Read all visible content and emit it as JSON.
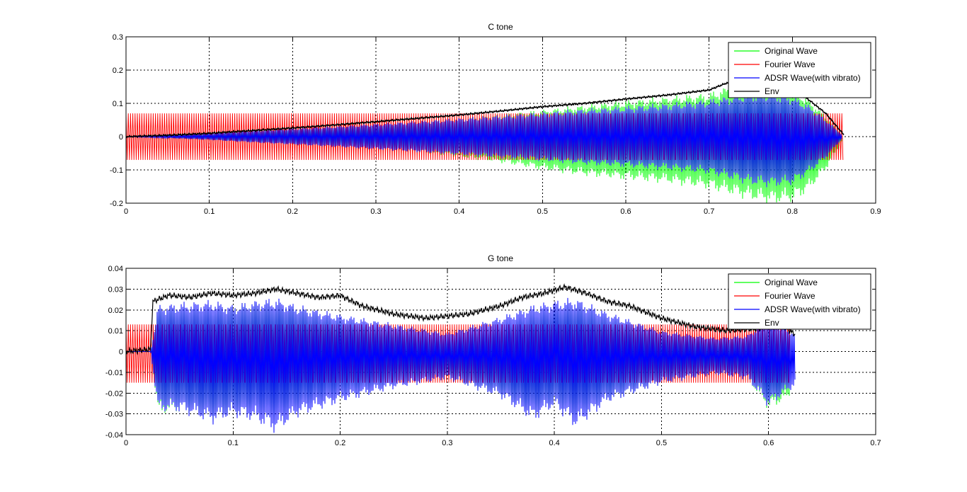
{
  "figure": {
    "background": "#ffffff"
  },
  "chart_data": [
    {
      "type": "line",
      "title": "C tone",
      "xlabel": "",
      "ylabel": "",
      "xlim": [
        0,
        0.9
      ],
      "ylim": [
        -0.2,
        0.3
      ],
      "xticks": [
        0,
        0.1,
        0.2,
        0.3,
        0.4,
        0.5,
        0.6,
        0.7,
        0.8,
        0.9
      ],
      "yticks": [
        -0.2,
        -0.1,
        0,
        0.1,
        0.2,
        0.3
      ],
      "xtick_labels": [
        "0",
        "0.1",
        "0.2",
        "0.3",
        "0.4",
        "0.5",
        "0.6",
        "0.7",
        "0.8",
        "0.9"
      ],
      "ytick_labels": [
        "-0.2",
        "-0.1",
        "0",
        "0.1",
        "0.2",
        "0.3"
      ],
      "grid": true,
      "legend_position": "top-right",
      "series": [
        {
          "name": "Original Wave",
          "color": "#00ff00",
          "style": "oscillation-band",
          "x": [
            0,
            0.05,
            0.1,
            0.15,
            0.2,
            0.25,
            0.3,
            0.35,
            0.4,
            0.45,
            0.5,
            0.55,
            0.6,
            0.65,
            0.7,
            0.725,
            0.75,
            0.775,
            0.8,
            0.82,
            0.84,
            0.86
          ],
          "upper": [
            0.0,
            0.004,
            0.009,
            0.016,
            0.022,
            0.028,
            0.035,
            0.042,
            0.05,
            0.06,
            0.072,
            0.085,
            0.097,
            0.108,
            0.117,
            0.138,
            0.15,
            0.15,
            0.135,
            0.1,
            0.055,
            0.005
          ],
          "lower": [
            0.0,
            -0.004,
            -0.009,
            -0.016,
            -0.022,
            -0.028,
            -0.035,
            -0.042,
            -0.055,
            -0.07,
            -0.09,
            -0.105,
            -0.115,
            -0.125,
            -0.14,
            -0.155,
            -0.17,
            -0.18,
            -0.175,
            -0.145,
            -0.09,
            -0.01
          ]
        },
        {
          "name": "Fourier Wave",
          "color": "#ff0000",
          "style": "oscillation-band",
          "x": [
            0,
            0.862
          ],
          "upper": [
            0.07,
            0.07
          ],
          "lower": [
            -0.07,
            -0.07
          ]
        },
        {
          "name": "ADSR Wave(with vibrato)",
          "color": "#0000ff",
          "style": "oscillation-band",
          "x": [
            0,
            0.05,
            0.1,
            0.15,
            0.2,
            0.25,
            0.3,
            0.35,
            0.4,
            0.45,
            0.5,
            0.55,
            0.6,
            0.65,
            0.7,
            0.725,
            0.75,
            0.775,
            0.8,
            0.82,
            0.84,
            0.86
          ],
          "upper": [
            0.0,
            0.004,
            0.009,
            0.016,
            0.022,
            0.028,
            0.035,
            0.042,
            0.05,
            0.058,
            0.066,
            0.075,
            0.082,
            0.09,
            0.1,
            0.11,
            0.12,
            0.12,
            0.11,
            0.085,
            0.048,
            0.005
          ],
          "lower": [
            0.0,
            -0.004,
            -0.009,
            -0.016,
            -0.022,
            -0.028,
            -0.035,
            -0.042,
            -0.05,
            -0.058,
            -0.066,
            -0.075,
            -0.082,
            -0.09,
            -0.1,
            -0.115,
            -0.13,
            -0.135,
            -0.13,
            -0.1,
            -0.06,
            -0.005
          ]
        },
        {
          "name": "Env",
          "color": "#000000",
          "style": "line",
          "x": [
            0,
            0.05,
            0.1,
            0.15,
            0.2,
            0.25,
            0.3,
            0.35,
            0.4,
            0.45,
            0.5,
            0.55,
            0.6,
            0.65,
            0.7,
            0.72,
            0.75,
            0.78,
            0.8,
            0.82,
            0.84,
            0.862
          ],
          "y": [
            0.0,
            0.004,
            0.01,
            0.018,
            0.026,
            0.035,
            0.045,
            0.055,
            0.065,
            0.077,
            0.09,
            0.1,
            0.113,
            0.125,
            0.14,
            0.16,
            0.17,
            0.165,
            0.145,
            0.11,
            0.07,
            0.005
          ]
        }
      ]
    },
    {
      "type": "line",
      "title": "G tone",
      "xlabel": "",
      "ylabel": "",
      "xlim": [
        0,
        0.7
      ],
      "ylim": [
        -0.04,
        0.04
      ],
      "xticks": [
        0,
        0.1,
        0.2,
        0.3,
        0.4,
        0.5,
        0.6,
        0.7
      ],
      "yticks": [
        -0.04,
        -0.03,
        -0.02,
        -0.01,
        0,
        0.01,
        0.02,
        0.03,
        0.04
      ],
      "xtick_labels": [
        "0",
        "0.1",
        "0.2",
        "0.3",
        "0.4",
        "0.5",
        "0.6",
        "0.7"
      ],
      "ytick_labels": [
        "-0.04",
        "-0.03",
        "-0.02",
        "-0.01",
        "0",
        "0.01",
        "0.02",
        "0.03",
        "0.04"
      ],
      "grid": true,
      "legend_position": "top-right",
      "series": [
        {
          "name": "Original Wave",
          "color": "#00ff00",
          "style": "oscillation-band",
          "x": [
            0,
            0.023,
            0.03,
            0.05,
            0.08,
            0.1,
            0.12,
            0.14,
            0.16,
            0.2,
            0.25,
            0.3,
            0.35,
            0.38,
            0.4,
            0.42,
            0.45,
            0.5,
            0.55,
            0.58,
            0.6,
            0.62
          ],
          "upper": [
            0.0,
            0.0,
            0.02,
            0.02,
            0.02,
            0.02,
            0.022,
            0.022,
            0.02,
            0.015,
            0.01,
            0.006,
            0.012,
            0.018,
            0.02,
            0.022,
            0.016,
            0.008,
            0.005,
            0.006,
            0.012,
            0.008
          ],
          "lower": [
            0.0,
            0.0,
            -0.027,
            -0.026,
            -0.03,
            -0.028,
            -0.027,
            -0.03,
            -0.026,
            -0.02,
            -0.015,
            -0.012,
            -0.02,
            -0.028,
            -0.024,
            -0.03,
            -0.022,
            -0.014,
            -0.01,
            -0.012,
            -0.025,
            -0.02
          ]
        },
        {
          "name": "Fourier Wave",
          "color": "#ff0000",
          "style": "oscillation-band",
          "x": [
            0,
            0.62
          ],
          "upper": [
            0.013,
            0.013
          ],
          "lower": [
            -0.015,
            -0.015
          ]
        },
        {
          "name": "ADSR Wave(with vibrato)",
          "color": "#0000ff",
          "style": "oscillation-band",
          "x": [
            0,
            0.023,
            0.03,
            0.05,
            0.08,
            0.1,
            0.12,
            0.14,
            0.16,
            0.2,
            0.25,
            0.3,
            0.35,
            0.38,
            0.4,
            0.42,
            0.45,
            0.5,
            0.55,
            0.58,
            0.6,
            0.625
          ],
          "upper": [
            0.0,
            0.0,
            0.02,
            0.021,
            0.022,
            0.02,
            0.022,
            0.023,
            0.02,
            0.016,
            0.012,
            0.008,
            0.015,
            0.02,
            0.022,
            0.023,
            0.017,
            0.009,
            0.006,
            0.007,
            0.014,
            0.008
          ],
          "lower": [
            0.0,
            0.0,
            -0.026,
            -0.026,
            -0.031,
            -0.028,
            -0.03,
            -0.035,
            -0.028,
            -0.022,
            -0.016,
            -0.012,
            -0.02,
            -0.03,
            -0.024,
            -0.033,
            -0.022,
            -0.014,
            -0.01,
            -0.012,
            -0.024,
            -0.015
          ]
        },
        {
          "name": "Env",
          "color": "#000000",
          "style": "line",
          "x": [
            0,
            0.023,
            0.025,
            0.04,
            0.06,
            0.08,
            0.1,
            0.12,
            0.14,
            0.16,
            0.18,
            0.2,
            0.22,
            0.25,
            0.28,
            0.3,
            0.32,
            0.35,
            0.37,
            0.39,
            0.41,
            0.43,
            0.45,
            0.47,
            0.5,
            0.53,
            0.56,
            0.59,
            0.61,
            0.625
          ],
          "y": [
            0.0,
            0.001,
            0.024,
            0.027,
            0.026,
            0.028,
            0.027,
            0.028,
            0.03,
            0.028,
            0.026,
            0.027,
            0.022,
            0.018,
            0.016,
            0.017,
            0.018,
            0.022,
            0.026,
            0.028,
            0.031,
            0.028,
            0.024,
            0.022,
            0.016,
            0.012,
            0.01,
            0.011,
            0.014,
            0.008
          ]
        }
      ]
    }
  ]
}
